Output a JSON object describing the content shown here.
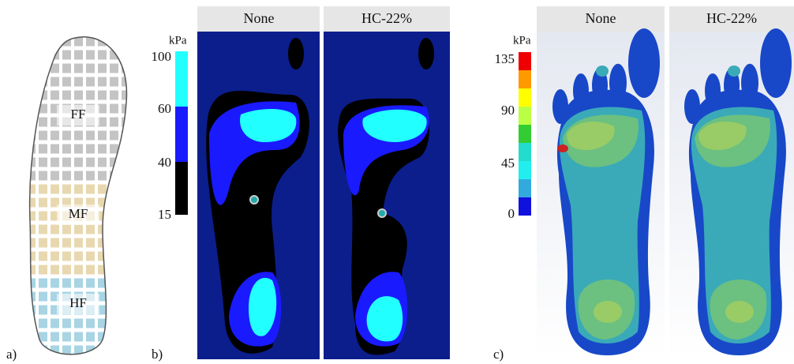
{
  "panels": [
    {
      "label": "a)",
      "regions": [
        "FF",
        "MF",
        "HF"
      ]
    },
    {
      "label": "b)",
      "unit": "kPa",
      "scale_ticks": [
        100,
        60,
        40,
        15
      ],
      "columns": [
        "None",
        "HC-22%"
      ]
    },
    {
      "label": "c)",
      "unit": "kPa",
      "scale_ticks": [
        135,
        90,
        45,
        0
      ],
      "columns": [
        "None",
        "HC-22%"
      ]
    }
  ]
}
